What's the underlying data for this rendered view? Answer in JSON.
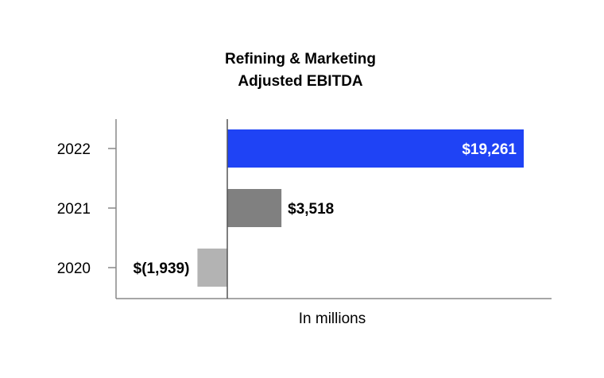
{
  "chart_data": {
    "type": "bar",
    "orientation": "horizontal",
    "title": [
      "Refining & Marketing",
      "Adjusted EBITDA"
    ],
    "categories": [
      "2022",
      "2021",
      "2020"
    ],
    "values": [
      19261,
      3518,
      -1939
    ],
    "data_labels": [
      "$19,261",
      "$3,518",
      "$(1,939)"
    ],
    "colors": [
      "#1f43f5",
      "#808080",
      "#b3b3b3"
    ],
    "label_colors": [
      "#ffffff",
      "#000000",
      "#000000"
    ],
    "label_inside": [
      true,
      false,
      false
    ],
    "xlabel": "In millions",
    "xlim": [
      -4000,
      20000
    ],
    "grid": false,
    "legend": "none"
  }
}
